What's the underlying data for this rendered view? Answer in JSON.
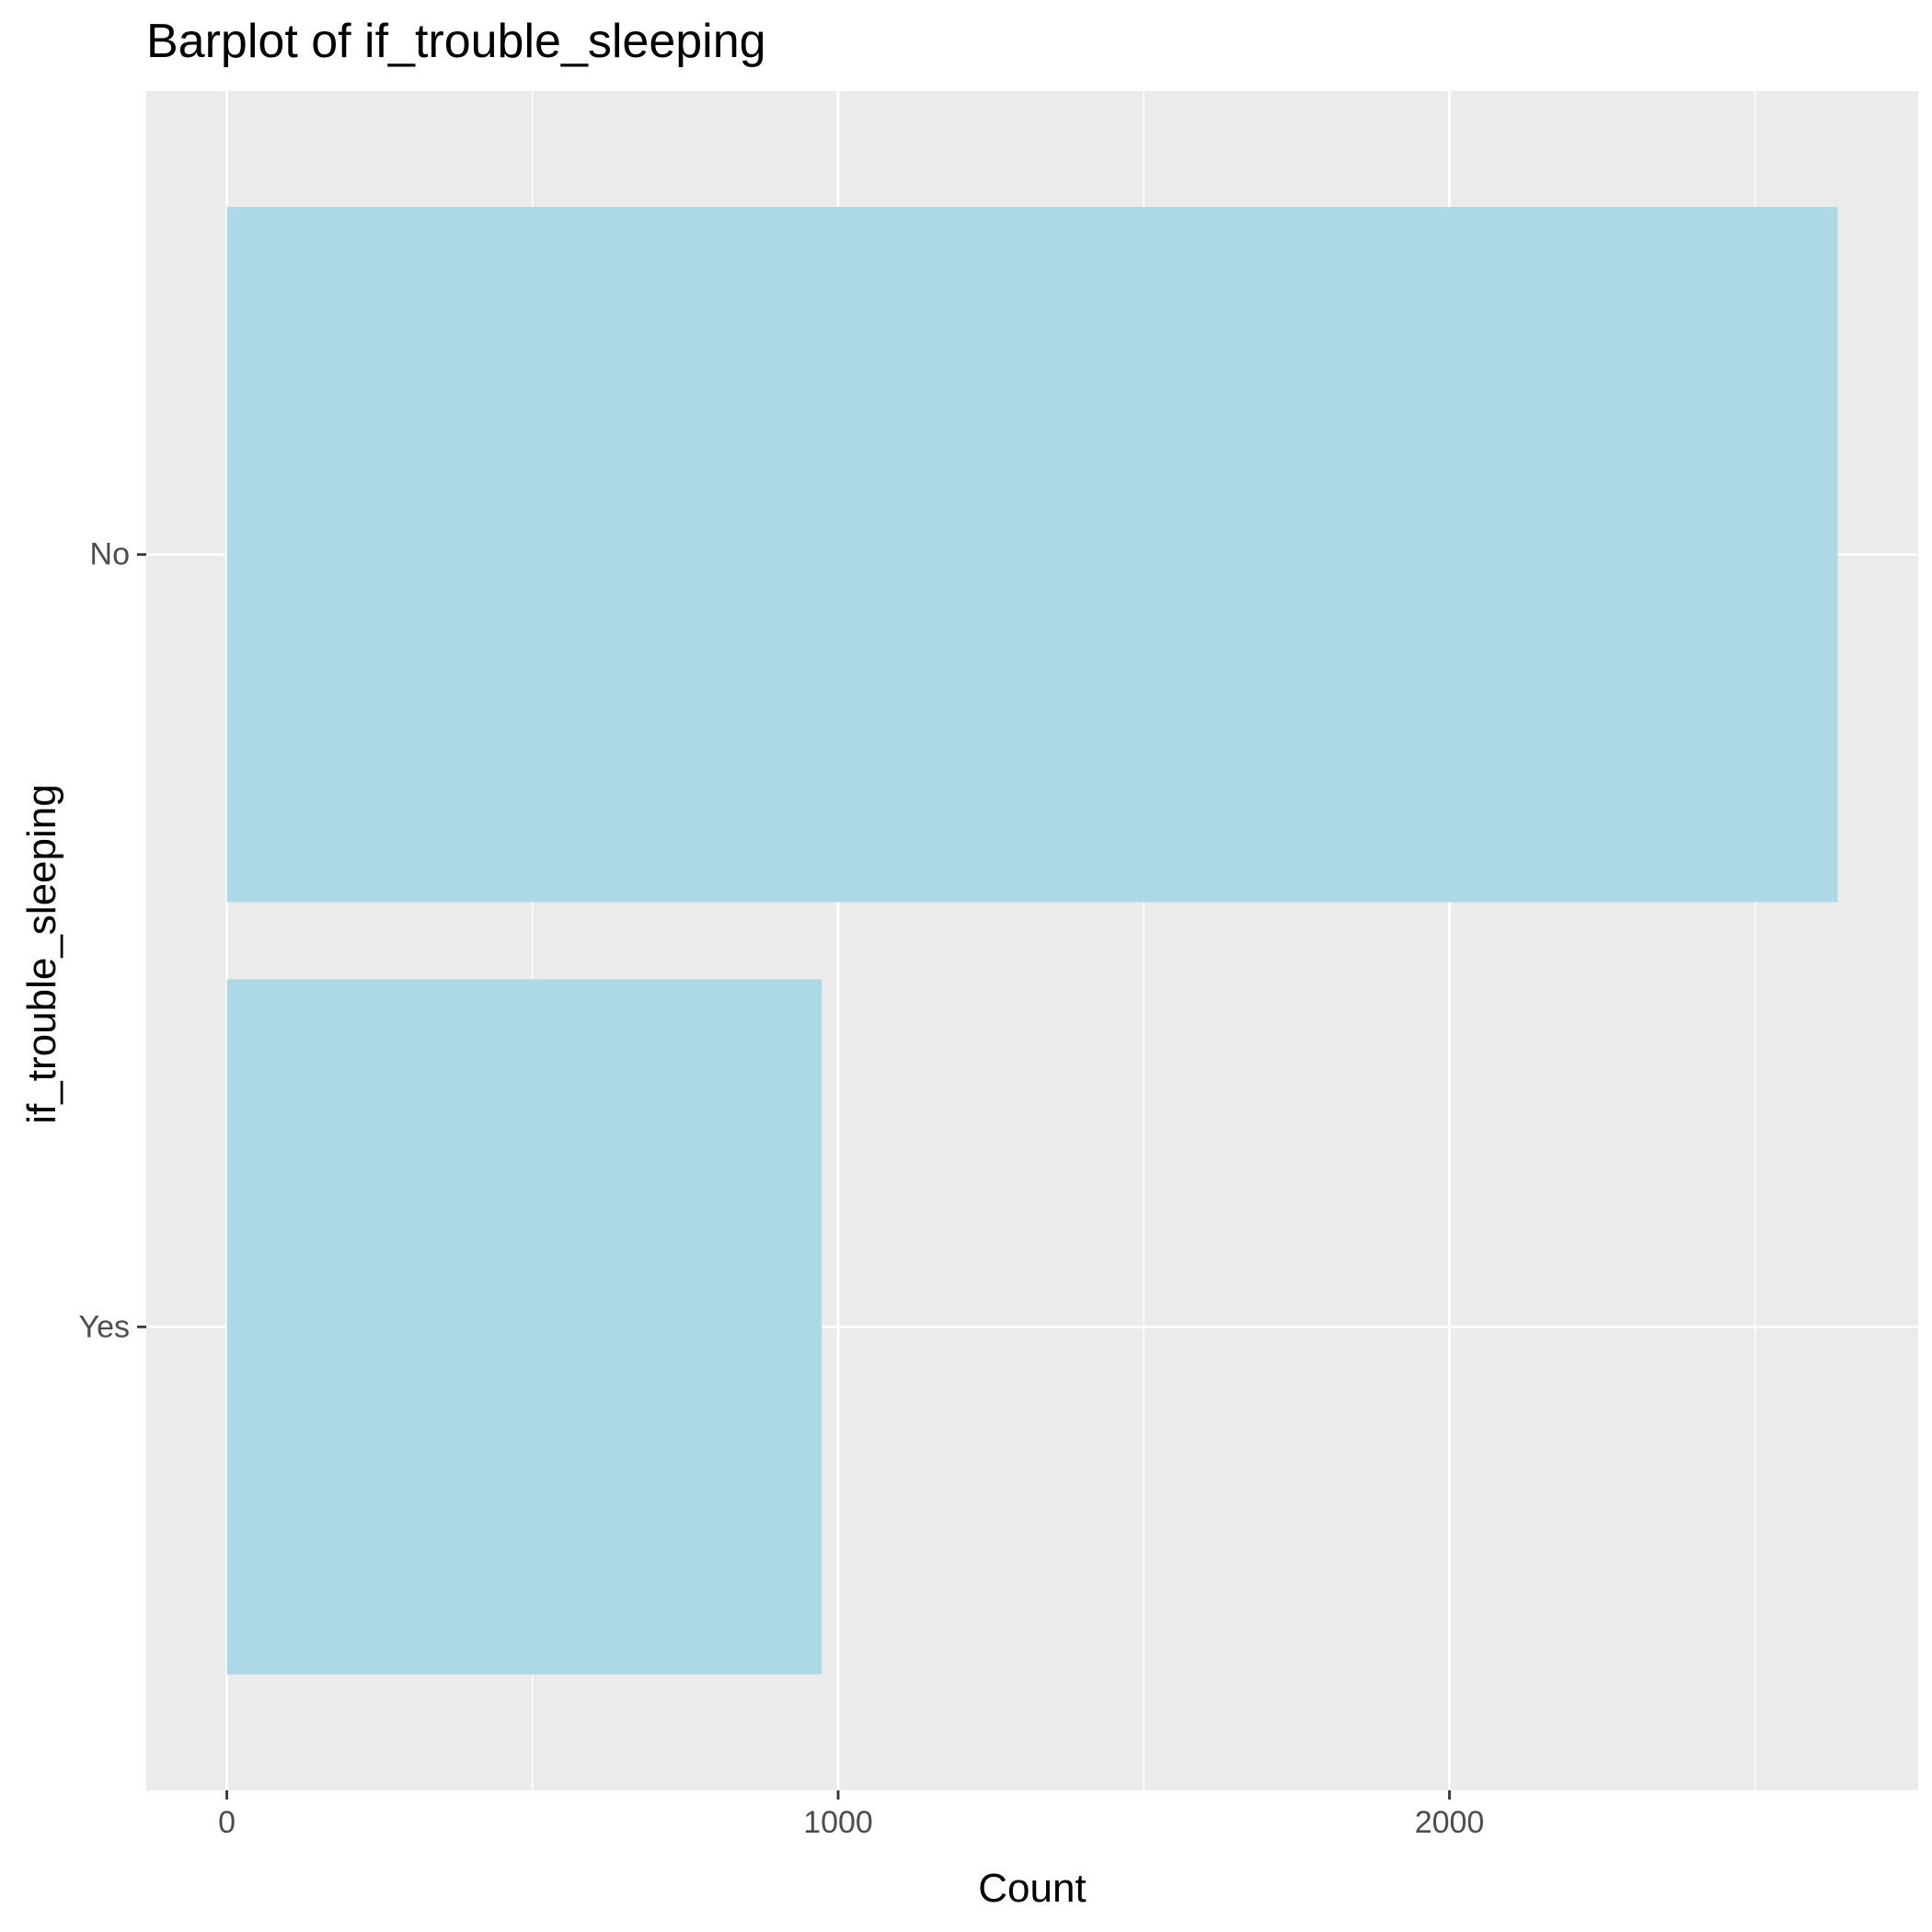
{
  "chart_data": {
    "type": "bar",
    "orientation": "horizontal",
    "title": "Barplot of if_trouble_sleeping",
    "xlabel": "Count",
    "ylabel": "if_trouble_sleeping",
    "categories": [
      "No",
      "Yes"
    ],
    "values": [
      2635,
      973
    ],
    "x_ticks": [
      0,
      1000,
      2000
    ],
    "xlim": [
      -131.75,
      2766.75
    ],
    "grid": true,
    "legend": "none",
    "colors": {
      "bar_fill": "#ADD8E6",
      "panel_background": "#EBEBEB",
      "grid": "#FFFFFF",
      "tick_text": "#4D4D4D",
      "tick_mark": "#333333"
    }
  }
}
